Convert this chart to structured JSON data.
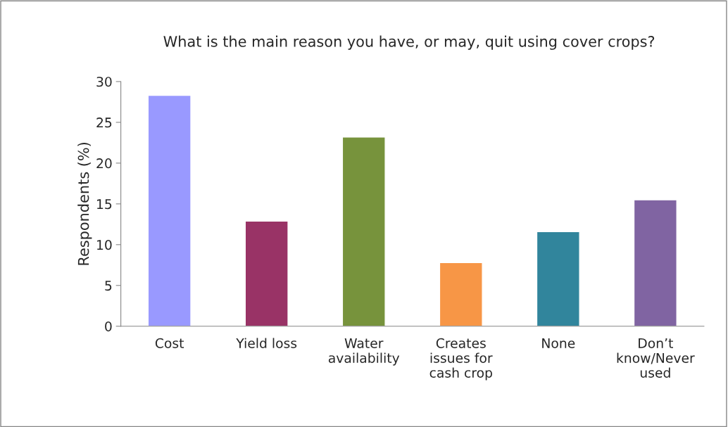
{
  "chart_data": {
    "type": "bar",
    "title": "What is the main reason you have, or may, quit using cover crops?",
    "ylabel": "Respondents (%)",
    "categories": [
      "Cost",
      "Yield loss",
      "Water\navailability",
      "Creates\nissues for\ncash crop",
      "None",
      "Don’t\nknow/Never\nused"
    ],
    "values": [
      28.3,
      12.9,
      23.2,
      7.8,
      11.6,
      15.5
    ],
    "colors": [
      "#9999ff",
      "#993366",
      "#77933c",
      "#f79646",
      "#31859c",
      "#8064a2"
    ],
    "ylim": [
      0,
      30
    ],
    "yticks": [
      0,
      5,
      10,
      15,
      20,
      25,
      30
    ],
    "grid": false,
    "legend": false
  }
}
